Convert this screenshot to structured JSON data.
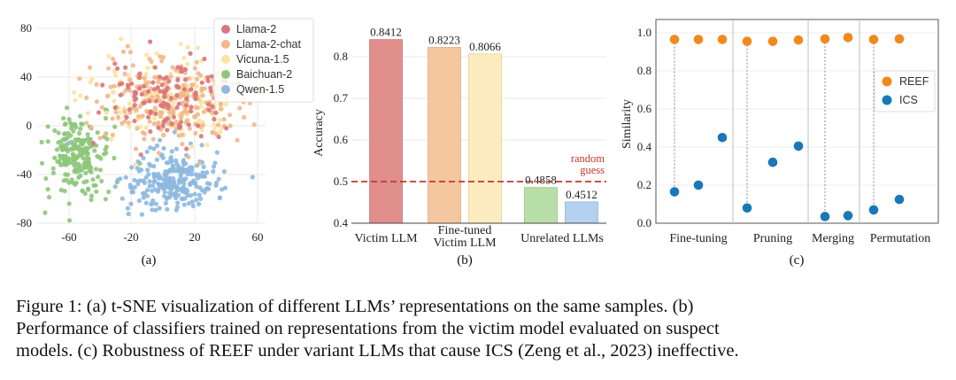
{
  "panels": {
    "a": {
      "label": "(a)",
      "chart_data": {
        "type": "scatter",
        "xticks": [
          "-60",
          "-20",
          "20",
          "60"
        ],
        "yticks": [
          "80",
          "40",
          "0",
          "-40",
          "-80"
        ],
        "xlim": [
          -80,
          70
        ],
        "ylim": [
          -80,
          80
        ],
        "legend_position": "top-right",
        "series": [
          {
            "name": "Llama-2",
            "color": "#d9767a"
          },
          {
            "name": "Llama-2-chat",
            "color": "#f2b889"
          },
          {
            "name": "Vicuna-1.5",
            "color": "#fbe3a0"
          },
          {
            "name": "Baichuan-2",
            "color": "#8ec77a"
          },
          {
            "name": "Qwen-1.5",
            "color": "#8db8e0"
          }
        ]
      }
    },
    "b": {
      "label": "(b)",
      "chart_data": {
        "type": "bar",
        "ylabel": "Accuracy",
        "ylim": [
          0.4,
          0.85
        ],
        "yticks": [
          "0.4",
          "0.5",
          "0.6",
          "0.7",
          "0.8"
        ],
        "groups": [
          "Victim LLM",
          "Fine-tuned Victim LLM",
          "Unrelated LLMs"
        ],
        "group_label_lines": [
          [
            "Victim LLM"
          ],
          [
            "Fine-tuned",
            "Victim LLM"
          ],
          [
            "Unrelated LLMs"
          ]
        ],
        "bars": [
          {
            "value": 0.8412,
            "label": "0.8412",
            "color": "#e08f8c"
          },
          {
            "value": 0.8223,
            "label": "0.8223",
            "color": "#f5c7a0"
          },
          {
            "value": 0.8066,
            "label": "0.8066",
            "color": "#fdecbf"
          },
          {
            "value": 0.4858,
            "label": "0.4858",
            "color": "#b8dfa8"
          },
          {
            "value": 0.4512,
            "label": "0.4512",
            "color": "#b4d2ef"
          }
        ],
        "reference_line": {
          "value": 0.5,
          "label_lines": [
            "random",
            "guess"
          ],
          "color": "#c0392b"
        }
      }
    },
    "c": {
      "label": "(c)",
      "chart_data": {
        "type": "scatter",
        "ylabel": "Similarity",
        "ylim": [
          0.0,
          1.0
        ],
        "yticks": [
          "0.0",
          "0.2",
          "0.4",
          "0.6",
          "0.8",
          "1.0"
        ],
        "categories": [
          "Fine-tuning",
          "Pruning",
          "Merging",
          "Permutation"
        ],
        "legend_position": "center-right",
        "series": [
          {
            "name": "REEF",
            "color": "#f08a1c",
            "values": [
              0.965,
              0.965,
              0.965,
              0.955,
              0.955,
              0.962,
              0.968,
              0.975,
              0.965,
              0.968
            ]
          },
          {
            "name": "ICS",
            "color": "#1878b8",
            "values": [
              0.165,
              0.2,
              0.45,
              0.08,
              0.32,
              0.405,
              0.035,
              0.04,
              0.07,
              0.125
            ]
          }
        ]
      }
    }
  },
  "caption": {
    "lines": [
      "Figure 1:  (a) t-SNE visualization of different LLMs’ representations on the same samples.  (b)",
      "Performance of classifiers trained on representations from the victim model evaluated on suspect",
      "models. (c) Robustness of REEF under variant LLMs that cause ICS (Zeng et al., 2023) ineffective."
    ]
  }
}
